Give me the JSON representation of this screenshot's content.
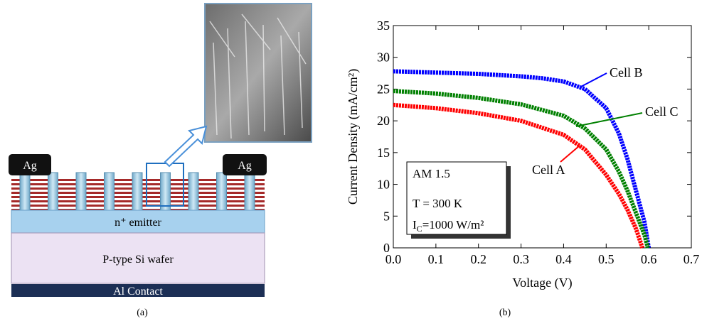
{
  "diagram": {
    "ag_left": "Ag",
    "ag_right": "Ag",
    "emitter": "n⁺ emitter",
    "wafer": "P-type Si wafer",
    "contact": "Al Contact",
    "panel_label": "(a)"
  },
  "panel_b_label": "(b)",
  "chart_data": {
    "type": "line",
    "x_label": "Voltage (V)",
    "y_label": "Current Density (mA/cm²)",
    "xlim": [
      0,
      0.7
    ],
    "ylim": [
      0,
      35
    ],
    "xticks": [
      {
        "value": 0,
        "label": "0.0"
      },
      0.1,
      0.2,
      0.3,
      0.4,
      0.5,
      0.6,
      0.7
    ],
    "yticks": [
      0,
      5,
      10,
      15,
      20,
      25,
      30,
      35
    ],
    "series": [
      {
        "name": "Cell A",
        "color": "#ff0000",
        "x": [
          0,
          0.1,
          0.2,
          0.3,
          0.4,
          0.45,
          0.5,
          0.53,
          0.55,
          0.57,
          0.585
        ],
        "values": [
          22.5,
          22.0,
          21.2,
          20.0,
          17.8,
          15.5,
          11.5,
          8.5,
          6,
          3,
          0
        ]
      },
      {
        "name": "Cell B",
        "color": "#0000ff",
        "x": [
          0,
          0.1,
          0.2,
          0.3,
          0.35,
          0.4,
          0.45,
          0.5,
          0.53,
          0.55,
          0.57,
          0.59,
          0.6
        ],
        "values": [
          27.8,
          27.6,
          27.4,
          27.0,
          26.7,
          26.2,
          25.0,
          22.0,
          18,
          14,
          9,
          4,
          0
        ]
      },
      {
        "name": "Cell C",
        "color": "#008000",
        "x": [
          0,
          0.1,
          0.2,
          0.3,
          0.4,
          0.45,
          0.5,
          0.53,
          0.55,
          0.57,
          0.59,
          0.598
        ],
        "values": [
          24.7,
          24.3,
          23.6,
          22.6,
          20.8,
          18.8,
          15.5,
          12,
          9,
          5.5,
          2,
          0
        ]
      }
    ],
    "conditions": {
      "spectrum": "AM 1.5",
      "temperature": "T = 300 K",
      "irradiance": {
        "main": "I",
        "sub": "C",
        "rest": "=1000 W/m²"
      }
    }
  }
}
